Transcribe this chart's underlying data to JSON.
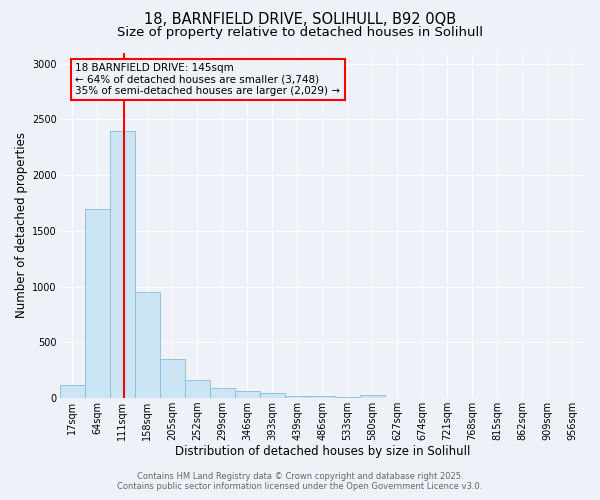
{
  "title_line1": "18, BARNFIELD DRIVE, SOLIHULL, B92 0QB",
  "title_line2": "Size of property relative to detached houses in Solihull",
  "xlabel": "Distribution of detached houses by size in Solihull",
  "ylabel": "Number of detached properties",
  "bin_labels": [
    "17sqm",
    "64sqm",
    "111sqm",
    "158sqm",
    "205sqm",
    "252sqm",
    "299sqm",
    "346sqm",
    "393sqm",
    "439sqm",
    "486sqm",
    "533sqm",
    "580sqm",
    "627sqm",
    "674sqm",
    "721sqm",
    "768sqm",
    "815sqm",
    "862sqm",
    "909sqm",
    "956sqm"
  ],
  "bar_values": [
    120,
    1700,
    2400,
    950,
    350,
    160,
    90,
    60,
    45,
    20,
    15,
    8,
    30,
    4,
    3,
    2,
    1,
    1,
    0,
    0,
    0
  ],
  "bar_color": "#cce5f5",
  "bar_edgecolor": "#88bbdd",
  "red_line_x": 2.07,
  "annotation_text": "18 BARNFIELD DRIVE: 145sqm\n← 64% of detached houses are smaller (3,748)\n35% of semi-detached houses are larger (2,029) →",
  "ylim": [
    0,
    3100
  ],
  "yticks": [
    0,
    500,
    1000,
    1500,
    2000,
    2500,
    3000
  ],
  "footer_line1": "Contains HM Land Registry data © Crown copyright and database right 2025.",
  "footer_line2": "Contains public sector information licensed under the Open Government Licence v3.0.",
  "bg_color": "#eef2f8",
  "grid_color": "#ffffff",
  "title_fontsize": 10.5,
  "subtitle_fontsize": 9.5,
  "label_fontsize": 8.5,
  "tick_fontsize": 7,
  "annot_fontsize": 7.5,
  "footer_fontsize": 6,
  "footer_color": "#666666"
}
